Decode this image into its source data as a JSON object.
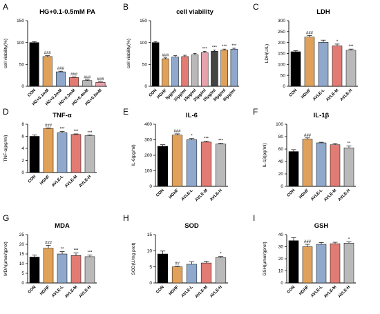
{
  "chart_data": [
    {
      "id": "A",
      "letter": "A",
      "type": "bar",
      "title": "HG+0.1-0.5mM PA",
      "ylabel": "cell viability(%)",
      "ylim": [
        0,
        150
      ],
      "yticks": [
        0,
        50,
        100,
        150
      ],
      "categories": [
        "CON",
        "HG+0.1mM",
        "HG+0.2mM",
        "HG+0.3mM",
        "HG+0.4mM",
        "HG+0.5mM"
      ],
      "values": [
        100,
        68,
        33,
        20,
        13,
        9
      ],
      "errors": [
        2,
        2,
        1.5,
        1.5,
        1.5,
        1
      ],
      "colors": [
        "#000000",
        "#e0a25a",
        "#8fa8cc",
        "#e17b73",
        "#b9b9b9",
        "#e8a2ad"
      ],
      "significance": [
        "",
        "###",
        "###",
        "###",
        "###",
        "###"
      ]
    },
    {
      "id": "B",
      "letter": "B",
      "type": "bar",
      "title": "cell viability",
      "ylabel": "cell viability(%)",
      "ylim": [
        0,
        150
      ],
      "yticks": [
        0,
        50,
        100,
        150
      ],
      "categories": [
        "CON",
        "HGHF",
        "5μg/ml",
        "10μg/ml",
        "15μg/ml",
        "20μg/ml",
        "25μg/ml",
        "30μg/ml",
        "40μg/ml"
      ],
      "values": [
        100,
        63,
        67,
        68,
        72,
        77,
        80,
        83,
        85
      ],
      "errors": [
        2,
        2,
        3,
        3,
        3,
        3,
        3,
        2,
        2
      ],
      "colors": [
        "#000000",
        "#e0a25a",
        "#8fa8cc",
        "#e17b73",
        "#b9b9b9",
        "#e8a2ad",
        "#444444",
        "#e0a25a",
        "#8fa8cc"
      ],
      "significance": [
        "",
        "###",
        "",
        "",
        "",
        "***",
        "***",
        "***",
        "***"
      ]
    },
    {
      "id": "C",
      "letter": "C",
      "type": "bar",
      "title": "LDH",
      "ylabel": "LDH(U/L)",
      "ylim": [
        0,
        300
      ],
      "yticks": [
        0,
        50,
        100,
        150,
        200,
        250,
        300
      ],
      "categories": [
        "CON",
        "HGHF",
        "AVLE-L",
        "AVLE-M",
        "AVLE-H"
      ],
      "values": [
        158,
        225,
        201,
        185,
        165
      ],
      "errors": [
        5,
        7,
        10,
        8,
        5
      ],
      "colors": [
        "#000000",
        "#e0a25a",
        "#8fa8cc",
        "#e17b73",
        "#b9b9b9"
      ],
      "significance": [
        "",
        "###",
        "",
        "*",
        "***"
      ]
    },
    {
      "id": "D",
      "letter": "D",
      "type": "bar",
      "title": "TNF-α",
      "ylabel": "TNF-α(pg/ml)",
      "ylim": [
        0,
        8
      ],
      "yticks": [
        0,
        2,
        4,
        6,
        8
      ],
      "categories": [
        "CON",
        "HGHF",
        "AVLE-L",
        "AVLE-M",
        "AVLE-H"
      ],
      "values": [
        6.0,
        7.3,
        6.6,
        6.3,
        6.1
      ],
      "errors": [
        0.2,
        0.1,
        0.2,
        0.1,
        0.1
      ],
      "colors": [
        "#000000",
        "#e0a25a",
        "#8fa8cc",
        "#e17b73",
        "#b9b9b9"
      ],
      "significance": [
        "",
        "###",
        "***",
        "***",
        "***"
      ]
    },
    {
      "id": "E",
      "letter": "E",
      "type": "bar",
      "title": "IL-6",
      "ylabel": "IL-6(pg/ml)",
      "ylim": [
        0,
        400
      ],
      "yticks": [
        0,
        100,
        200,
        300,
        400
      ],
      "categories": [
        "CON",
        "HGHF",
        "AVLE-L",
        "AVLE-M",
        "AVLE-H"
      ],
      "values": [
        258,
        330,
        300,
        285,
        272
      ],
      "errors": [
        10,
        8,
        8,
        6,
        5
      ],
      "colors": [
        "#000000",
        "#e0a25a",
        "#8fa8cc",
        "#e17b73",
        "#b9b9b9"
      ],
      "significance": [
        "",
        "###",
        "*",
        "***",
        "***"
      ]
    },
    {
      "id": "F",
      "letter": "F",
      "type": "bar",
      "title": "IL-1β",
      "ylabel": "IL-1β(pg/ml)",
      "ylim": [
        0,
        100
      ],
      "yticks": [
        0,
        20,
        40,
        60,
        80,
        100
      ],
      "categories": [
        "CON",
        "HGHF",
        "AVLE-L",
        "AVLE-M",
        "AVLE-H"
      ],
      "values": [
        56,
        76,
        70,
        67,
        62
      ],
      "errors": [
        3,
        2,
        1,
        2,
        3
      ],
      "colors": [
        "#000000",
        "#e0a25a",
        "#8fa8cc",
        "#e17b73",
        "#b9b9b9"
      ],
      "significance": [
        "",
        "###",
        "",
        "",
        "**"
      ]
    },
    {
      "id": "G",
      "letter": "G",
      "type": "bar",
      "title": "MDA",
      "ylabel": "MDA(μmol/gprot)",
      "ylim": [
        0,
        25
      ],
      "yticks": [
        0,
        5,
        10,
        15,
        20,
        25
      ],
      "categories": [
        "CON",
        "HGHF",
        "AVLE-L",
        "AVLE-M",
        "AVLE-H"
      ],
      "values": [
        13.4,
        18.0,
        15.0,
        14.2,
        13.6
      ],
      "errors": [
        1.0,
        1.5,
        1.2,
        1.3,
        0.8
      ],
      "colors": [
        "#000000",
        "#e0a25a",
        "#8fa8cc",
        "#e17b73",
        "#b9b9b9"
      ],
      "significance": [
        "",
        "###",
        "**",
        "***",
        "***"
      ]
    },
    {
      "id": "H",
      "letter": "H",
      "type": "bar",
      "title": "SOD",
      "ylabel": "SOD(U/mg prot)",
      "ylim": [
        0,
        15
      ],
      "yticks": [
        0,
        5,
        10,
        15
      ],
      "categories": [
        "CON",
        "HGHF",
        "AVLE-L",
        "AVLE-M",
        "AVLE-H"
      ],
      "values": [
        9.0,
        5.0,
        5.8,
        6.2,
        7.9
      ],
      "errors": [
        0.9,
        0.2,
        0.8,
        0.5,
        0.3
      ],
      "colors": [
        "#000000",
        "#e0a25a",
        "#8fa8cc",
        "#e17b73",
        "#b9b9b9"
      ],
      "significance": [
        "",
        "##",
        "",
        "",
        "*"
      ]
    },
    {
      "id": "I",
      "letter": "I",
      "type": "bar",
      "title": "GSH",
      "ylabel": "GSH(μmol/gprot)",
      "ylim": [
        0,
        40
      ],
      "yticks": [
        0,
        10,
        20,
        30,
        40
      ],
      "categories": [
        "CON",
        "HGHF",
        "AVLE-L",
        "AVLE-M",
        "AVLE-H"
      ],
      "values": [
        35,
        30,
        32,
        32.5,
        33
      ],
      "errors": [
        2.5,
        2,
        1.5,
        1.2,
        1
      ],
      "colors": [
        "#000000",
        "#e0a25a",
        "#8fa8cc",
        "#e17b73",
        "#b9b9b9"
      ],
      "significance": [
        "",
        "###",
        "",
        "",
        "*"
      ]
    }
  ]
}
